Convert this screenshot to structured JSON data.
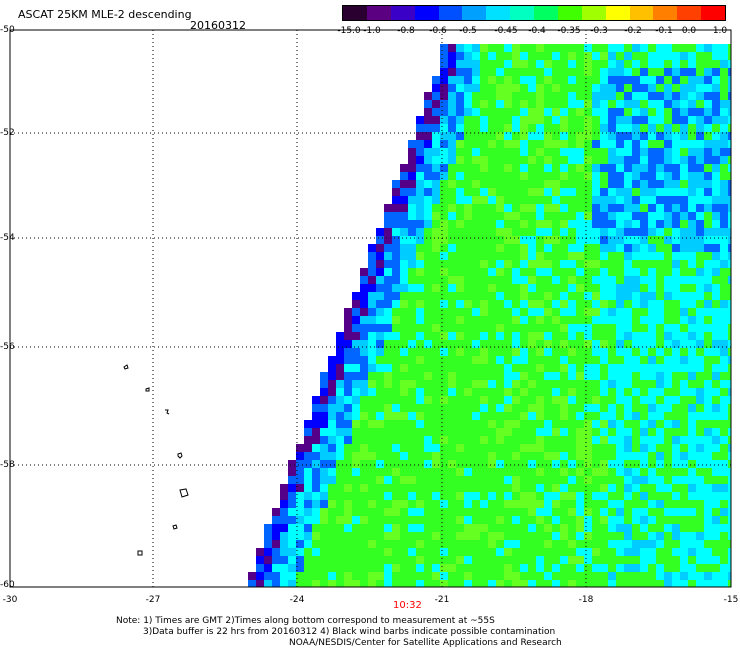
{
  "header": {
    "title": "ASCAT 25KM MLE-2 descending",
    "date": "20160312"
  },
  "colorbar": {
    "labels": [
      "-15.0",
      "-1.0",
      "-0.8",
      "-0.6",
      "-0.5",
      "-0.45",
      "-0.4",
      "-0.35",
      "-0.3",
      "-0.2",
      "-0.1",
      "0.0",
      "1.0"
    ],
    "colors": [
      "#2a0030",
      "#5a0080",
      "#3a00c8",
      "#0000ff",
      "#0050ff",
      "#00a0ff",
      "#00e0ff",
      "#00ffc0",
      "#00ff60",
      "#40ff00",
      "#a0ff00",
      "#ffff00",
      "#ffc000",
      "#ff8000",
      "#ff4000",
      "#ff0000"
    ]
  },
  "axes": {
    "lat_labels": [
      "-50",
      "-52",
      "-54",
      "-56",
      "-58",
      "-60"
    ],
    "lon_labels": [
      "-30",
      "-27",
      "-24",
      "-21",
      "-18",
      "-15"
    ]
  },
  "time_label": "10:32",
  "notes": {
    "line1": "Note: 1) Times are GMT 2)Times along bottom correspond to measurement at ~55S",
    "line2": "3)Data buffer is 22 hrs from 20160312 4) Black wind barbs indicate possible contamination",
    "line3": "NOAA/NESDIS/Center for Satellite Applications and Research"
  },
  "map": {
    "swath_dominant_color": "#33ff22",
    "swath_secondary_color": "#00ffff",
    "low_value_color": "#0000ff",
    "edge_color": "#550088",
    "grid": "dotted"
  }
}
